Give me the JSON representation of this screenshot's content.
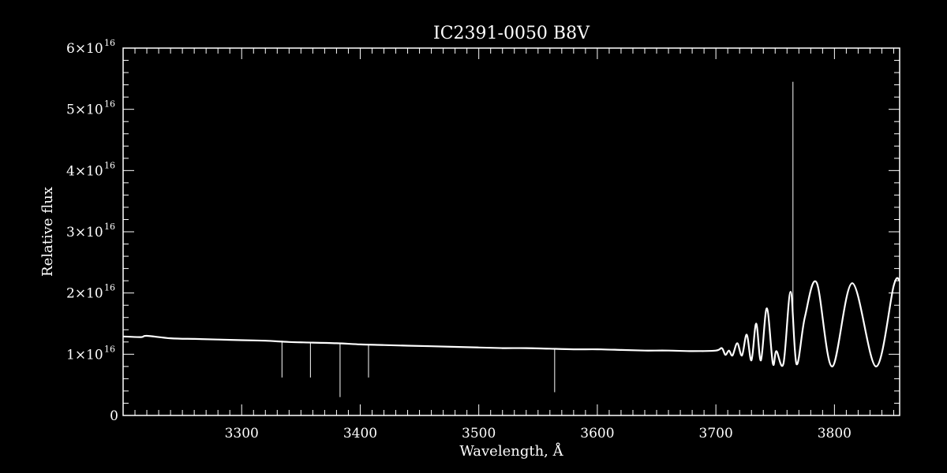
{
  "chart_data": {
    "type": "line",
    "title": "IC2391-0050   B8V",
    "xlabel": "Wavelength, Å",
    "ylabel": "Relative flux",
    "xlim": [
      3200,
      3855
    ],
    "ylim": [
      0,
      6e+16
    ],
    "x_ticks": [
      {
        "value": 3300,
        "label": "3300"
      },
      {
        "value": 3400,
        "label": "3400"
      },
      {
        "value": 3500,
        "label": "3500"
      },
      {
        "value": 3600,
        "label": "3600"
      },
      {
        "value": 3700,
        "label": "3700"
      },
      {
        "value": 3800,
        "label": "3800"
      }
    ],
    "y_ticks": [
      {
        "value": 0,
        "mantissa": "0",
        "exponent": ""
      },
      {
        "value": 1e+16,
        "mantissa": "1×10",
        "exponent": "16"
      },
      {
        "value": 2e+16,
        "mantissa": "2×10",
        "exponent": "16"
      },
      {
        "value": 3e+16,
        "mantissa": "3×10",
        "exponent": "16"
      },
      {
        "value": 4e+16,
        "mantissa": "4×10",
        "exponent": "16"
      },
      {
        "value": 5e+16,
        "mantissa": "5×10",
        "exponent": "16"
      },
      {
        "value": 6e+16,
        "mantissa": "6×10",
        "exponent": "16"
      }
    ],
    "series": [
      {
        "x": [
          3200,
          3215,
          3220,
          3240,
          3260,
          3280,
          3300,
          3320,
          3340,
          3360,
          3380,
          3400,
          3420,
          3440,
          3460,
          3480,
          3500,
          3520,
          3540,
          3560,
          3580,
          3600,
          3620,
          3640,
          3660,
          3680,
          3700,
          3705,
          3708,
          3711,
          3714,
          3718,
          3722,
          3726,
          3730,
          3734,
          3738,
          3743,
          3748,
          3751,
          3757,
          3763,
          3768,
          3775,
          3785,
          3798,
          3815,
          3835,
          3850,
          3855
        ],
        "y": [
          1.29e+16,
          1.28e+16,
          1.3e+16,
          1.26e+16,
          1.25e+16,
          1.24e+16,
          1.23e+16,
          1.22e+16,
          1.2e+16,
          1.19e+16,
          1.18e+16,
          1.16e+16,
          1.15e+16,
          1.14e+16,
          1.13e+16,
          1.12e+16,
          1.11e+16,
          1.1e+16,
          1.1e+16,
          1.09e+16,
          1.08e+16,
          1.08e+16,
          1.07e+16,
          1.06e+16,
          1.06e+16,
          1.05e+16,
          1.06e+16,
          1.1e+16,
          9900000000000000.0,
          1.06e+16,
          9800000000000000.0,
          1.18e+16,
          9800000000000000.0,
          1.32e+16,
          9000000000000000.0,
          1.5e+16,
          9000000000000000.0,
          1.75e+16,
          8500000000000000.0,
          1.05e+16,
          8500000000000000.0,
          2.02e+16,
          8400000000000000.0,
          1.6e+16,
          2.17e+16,
          8000000000000000.0,
          2.16e+16,
          8000000000000000.0,
          2.12e+16,
          2.2e+16
        ]
      }
    ],
    "spikes": [
      {
        "x": 3334,
        "y_from": 1.22e+16,
        "y_to": 6200000000000000.0
      },
      {
        "x": 3358,
        "y_from": 1.2e+16,
        "y_to": 6200000000000000.0
      },
      {
        "x": 3383,
        "y_from": 1.19e+16,
        "y_to": 3000000000000000.0
      },
      {
        "x": 3407,
        "y_from": 1.16e+16,
        "y_to": 6200000000000000.0
      },
      {
        "x": 3564,
        "y_from": 1.09e+16,
        "y_to": 3800000000000000.0
      },
      {
        "x": 3765,
        "y_from": 1.6e+16,
        "y_to": 5.45e+16
      }
    ]
  }
}
